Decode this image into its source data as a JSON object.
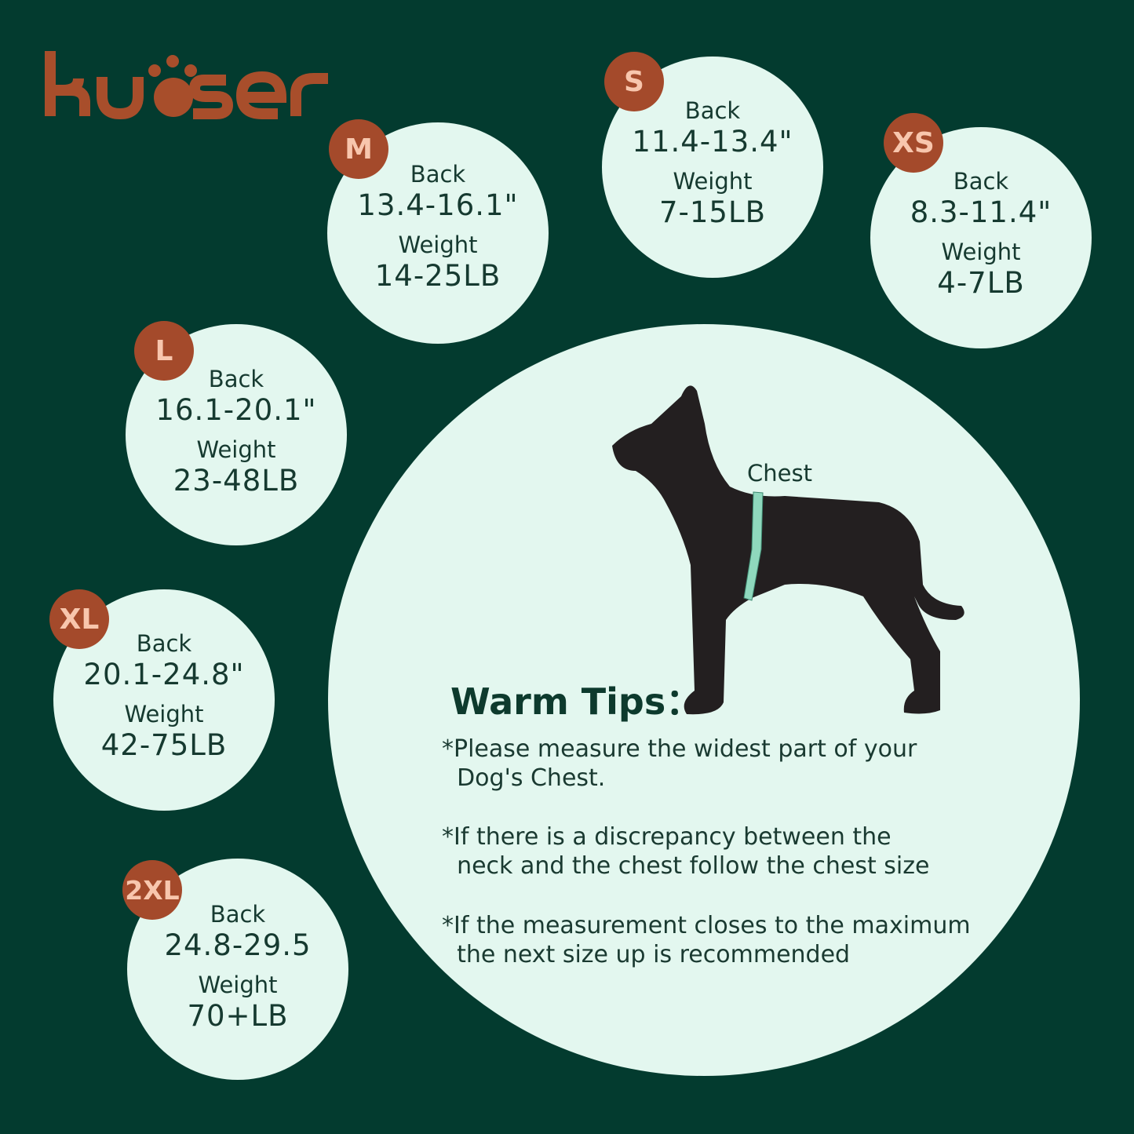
{
  "brand": {
    "logo_text": "kuoser",
    "color": "#a84e2b"
  },
  "colors": {
    "background": "#033b2f",
    "circle": "#e3f7ef",
    "badge": "#a44a2b",
    "badge_text": "#f8c6ad"
  },
  "sizes": [
    {
      "size": "M",
      "back_label": "Back",
      "back": "13.4-16.1\"",
      "weight_label": "Weight",
      "weight": "14-25LB"
    },
    {
      "size": "S",
      "back_label": "Back",
      "back": "11.4-13.4\"",
      "weight_label": "Weight",
      "weight": "7-15LB"
    },
    {
      "size": "XS",
      "back_label": "Back",
      "back": "8.3-11.4\"",
      "weight_label": "Weight",
      "weight": "4-7LB"
    },
    {
      "size": "L",
      "back_label": "Back",
      "back": "16.1-20.1\"",
      "weight_label": "Weight",
      "weight": "23-48LB"
    },
    {
      "size": "XL",
      "back_label": "Back",
      "back": "20.1-24.8\"",
      "weight_label": "Weight",
      "weight": "42-75LB"
    },
    {
      "size": "2XL",
      "back_label": "Back",
      "back": "24.8-29.5",
      "weight_label": "Weight",
      "weight": "70+LB"
    }
  ],
  "diagram": {
    "chest_label": "Chest",
    "icon": "dog-silhouette-icon"
  },
  "tips": {
    "title": "Warm Tips：",
    "items": [
      "*Please measure the widest part of your\n  Dog's Chest.",
      "*If there is a discrepancy between the\n  neck and the chest follow the chest size",
      "*If the measurement closes to the maximum\n  the next size up is recommended"
    ]
  }
}
